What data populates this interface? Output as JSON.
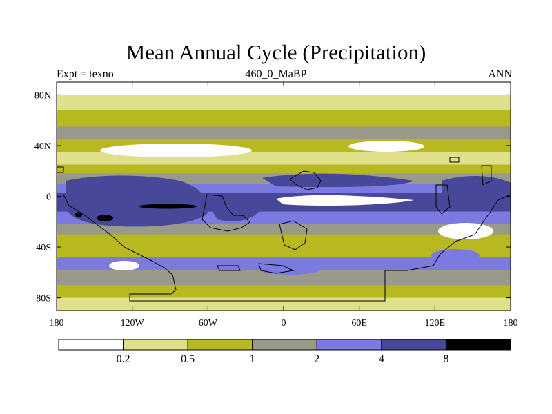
{
  "chart_data": {
    "type": "heatmap",
    "title": "Mean Annual Cycle (Precipitation)",
    "left_string": "Expt = texno",
    "center_string": "460_0_MaBP",
    "right_string": "ANN",
    "x_ticks": [
      "180",
      "120W",
      "60W",
      "0",
      "60E",
      "120E",
      "180"
    ],
    "x_tick_values": [
      -180,
      -120,
      -60,
      0,
      60,
      120,
      180
    ],
    "y_ticks": [
      "80N",
      "40N",
      "0",
      "40S",
      "80S"
    ],
    "y_tick_values": [
      80,
      40,
      0,
      -40,
      -80
    ],
    "xlim": [
      -180,
      180
    ],
    "ylim": [
      -90,
      90
    ],
    "colorbar": {
      "levels": [
        "0.2",
        "0.5",
        "1",
        "2",
        "4",
        "8"
      ],
      "colors": [
        "#ffffff",
        "#e0e08a",
        "#b8b820",
        "#9a9a8a",
        "#7a7ae0",
        "#48489a",
        "#000000"
      ]
    },
    "zonal_profile": [
      {
        "lat": 90,
        "value": 0.1
      },
      {
        "lat": 80,
        "value": 0.3
      },
      {
        "lat": 68,
        "value": 0.6
      },
      {
        "lat": 55,
        "value": 1.4
      },
      {
        "lat": 45,
        "value": 0.6
      },
      {
        "lat": 35,
        "value": 0.4
      },
      {
        "lat": 25,
        "value": 0.8
      },
      {
        "lat": 18,
        "value": 1.6
      },
      {
        "lat": 10,
        "value": 3.5
      },
      {
        "lat": 3,
        "value": 5.5
      },
      {
        "lat": -3,
        "value": 5.0
      },
      {
        "lat": -12,
        "value": 3.0
      },
      {
        "lat": -22,
        "value": 1.5
      },
      {
        "lat": -30,
        "value": 0.7
      },
      {
        "lat": -38,
        "value": 0.9
      },
      {
        "lat": -48,
        "value": 2.0
      },
      {
        "lat": -58,
        "value": 1.5
      },
      {
        "lat": -70,
        "value": 0.7
      },
      {
        "lat": -80,
        "value": 0.4
      },
      {
        "lat": -90,
        "value": 0.5
      }
    ]
  }
}
